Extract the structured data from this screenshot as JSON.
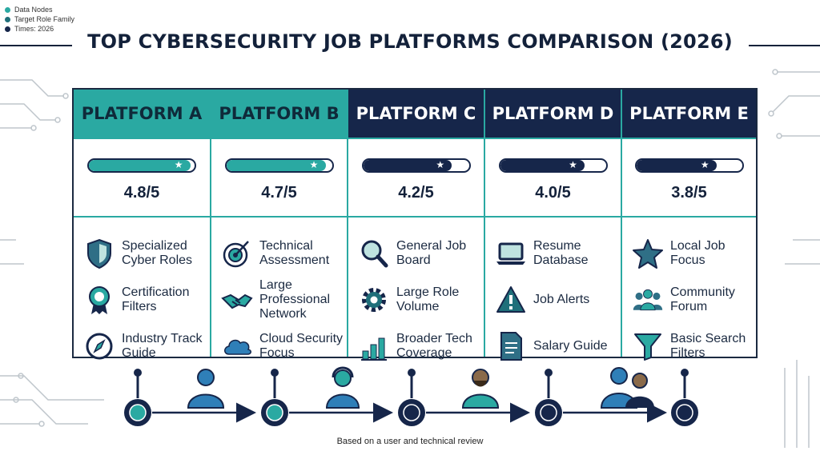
{
  "legend": [
    {
      "label": "Data Nodes",
      "color": "#2aa9a2"
    },
    {
      "label": "Target Role Family",
      "color": "#1f6f7a"
    },
    {
      "label": "Times: 2026",
      "color": "#16264a"
    }
  ],
  "title": "TOP CYBERSECURITY JOB PLATFORMS COMPARISON (2026)",
  "colors": {
    "teal": "#2aa9a2",
    "navy": "#16264a"
  },
  "platforms": [
    {
      "name": "PLATFORM A",
      "rating_label": "4.8/5",
      "rating": 4.8,
      "header_style": "teal",
      "features": [
        {
          "label": "Specialized Cyber Roles",
          "icon": "shield-icon"
        },
        {
          "label": "Certification Filters",
          "icon": "certificate-icon"
        },
        {
          "label": "Industry Track Guide",
          "icon": "compass-icon"
        }
      ]
    },
    {
      "name": "PLATFORM B",
      "rating_label": "4.7/5",
      "rating": 4.7,
      "header_style": "teal",
      "features": [
        {
          "label": "Technical Assessment",
          "icon": "target-icon"
        },
        {
          "label": "Large Professional Network",
          "icon": "handshake-icon"
        },
        {
          "label": "Cloud Security Focus",
          "icon": "cloud-icon"
        }
      ]
    },
    {
      "name": "PLATFORM C",
      "rating_label": "4.2/5",
      "rating": 4.2,
      "header_style": "navy",
      "features": [
        {
          "label": "General Job Board",
          "icon": "magnifier-icon"
        },
        {
          "label": "Large Role Volume",
          "icon": "gear-icon"
        },
        {
          "label": "Broader Tech Coverage",
          "icon": "bar-chart-icon"
        }
      ]
    },
    {
      "name": "PLATFORM D",
      "rating_label": "4.0/5",
      "rating": 4.0,
      "header_style": "navy",
      "features": [
        {
          "label": "Resume Database",
          "icon": "laptop-icon"
        },
        {
          "label": "Job Alerts",
          "icon": "alert-icon"
        },
        {
          "label": "Salary Guide",
          "icon": "document-icon"
        }
      ]
    },
    {
      "name": "PLATFORM E",
      "rating_label": "3.8/5",
      "rating": 3.8,
      "header_style": "navy",
      "features": [
        {
          "label": "Local Job Focus",
          "icon": "star-icon"
        },
        {
          "label": "Community Forum",
          "icon": "people-icon"
        },
        {
          "label": "Basic Search Filters",
          "icon": "funnel-icon"
        }
      ]
    }
  ],
  "timeline": {
    "nodes": 5,
    "people": [
      "person-icon",
      "headset-person-icon",
      "bearded-person-icon",
      "team-icon"
    ]
  },
  "footnote": "Based on a user and technical review"
}
